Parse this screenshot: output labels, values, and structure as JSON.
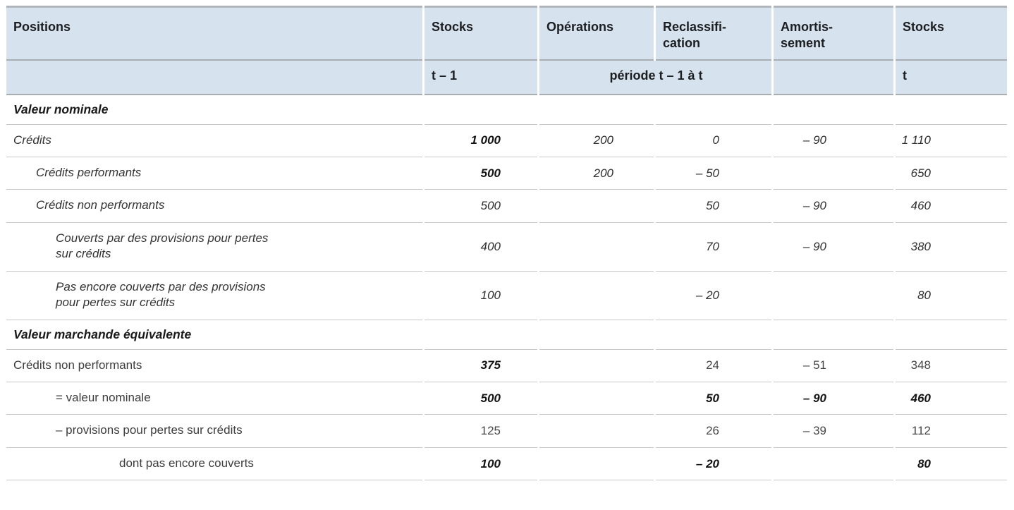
{
  "table": {
    "header": {
      "col_positions": "Positions",
      "col_stocks_t1": "Stocks",
      "col_operations": "Opérations",
      "col_reclassification": "Reclassifi-\ncation",
      "col_amortissement": "Amortis-\nsement",
      "col_stocks_t": "Stocks",
      "sub_t1": "t – 1",
      "sub_period": "période t – 1 à t",
      "sub_t": "t"
    },
    "rows": [
      {
        "type": "section",
        "label": "Valeur nominale"
      },
      {
        "type": "data",
        "label": "Crédits",
        "indent": 0,
        "label_style": "i",
        "cells": [
          [
            "1 000",
            "bi"
          ],
          [
            "200",
            "i"
          ],
          [
            "0",
            "i"
          ],
          [
            "– 90",
            "i"
          ],
          [
            "1 110",
            "i"
          ]
        ]
      },
      {
        "type": "data",
        "label": "Crédits performants",
        "indent": 1,
        "label_style": "i",
        "cells": [
          [
            "500",
            "bi"
          ],
          [
            "200",
            "i"
          ],
          [
            "– 50",
            "i"
          ],
          [
            "",
            ""
          ],
          [
            "650",
            "i"
          ]
        ]
      },
      {
        "type": "data",
        "label": "Crédits non performants",
        "indent": 1,
        "label_style": "i",
        "cells": [
          [
            "500",
            "i"
          ],
          [
            "",
            ""
          ],
          [
            "50",
            "i"
          ],
          [
            "– 90",
            "i"
          ],
          [
            "460",
            "i"
          ]
        ]
      },
      {
        "type": "data",
        "label": "Couverts par des provisions pour pertes\nsur crédits",
        "indent": 2,
        "label_style": "i",
        "cells": [
          [
            "400",
            "i"
          ],
          [
            "",
            ""
          ],
          [
            "70",
            "i"
          ],
          [
            "– 90",
            "i"
          ],
          [
            "380",
            "i"
          ]
        ]
      },
      {
        "type": "data",
        "label": "Pas encore couverts par des provisions\npour pertes sur crédits",
        "indent": 2,
        "label_style": "i",
        "cells": [
          [
            "100",
            "i"
          ],
          [
            "",
            ""
          ],
          [
            "– 20",
            "i"
          ],
          [
            "",
            ""
          ],
          [
            "80",
            "i"
          ]
        ]
      },
      {
        "type": "section",
        "label": "Valeur marchande équivalente"
      },
      {
        "type": "data",
        "label": "Crédits non performants",
        "indent": 0,
        "label_style": "r",
        "cells": [
          [
            "375",
            "bi"
          ],
          [
            "",
            ""
          ],
          [
            "24",
            "r"
          ],
          [
            "– 51",
            "r"
          ],
          [
            "348",
            "r"
          ]
        ]
      },
      {
        "type": "data",
        "label": "= valeur nominale",
        "indent": 2,
        "label_style": "r",
        "cells": [
          [
            "500",
            "bi"
          ],
          [
            "",
            ""
          ],
          [
            "50",
            "bi"
          ],
          [
            "– 90",
            "bi"
          ],
          [
            "460",
            "bi"
          ]
        ]
      },
      {
        "type": "data",
        "label": "– provisions pour pertes sur crédits",
        "indent": 2,
        "label_style": "r",
        "cells": [
          [
            "125",
            "r"
          ],
          [
            "",
            ""
          ],
          [
            "26",
            "r"
          ],
          [
            "– 39",
            "r"
          ],
          [
            "112",
            "r"
          ]
        ]
      },
      {
        "type": "data",
        "label": "dont pas encore couverts",
        "indent": 3,
        "label_style": "r",
        "cells": [
          [
            "100",
            "bi"
          ],
          [
            "",
            ""
          ],
          [
            "– 20",
            "bi"
          ],
          [
            "",
            ""
          ],
          [
            "80",
            "bi"
          ]
        ]
      }
    ]
  },
  "colors": {
    "header_background": "#d6e3ee",
    "header_text": "#1c1e21",
    "row_separator": "#c8c8c8",
    "header_separator": "#a9aeb3",
    "top_border": "#b1b6bb",
    "body_text": "#3a3a3a",
    "emphasis_text": "#141414"
  }
}
